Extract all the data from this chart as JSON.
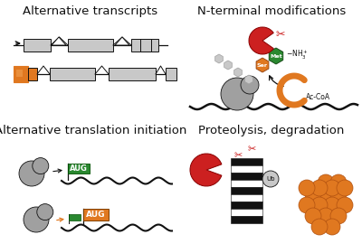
{
  "bg_color": "#ffffff",
  "quadrant_titles": [
    "Alternative transcripts",
    "N-terminal modifications",
    "Alternative translation initiation",
    "Proteolysis, degradation"
  ],
  "title_fontsize": 9.5,
  "gray_light": "#c8c8c8",
  "gray_med": "#a0a0a0",
  "gray_dark": "#787878",
  "orange": "#e07820",
  "red": "#cc2020",
  "green": "#2a8830",
  "black": "#111111",
  "white": "#ffffff"
}
